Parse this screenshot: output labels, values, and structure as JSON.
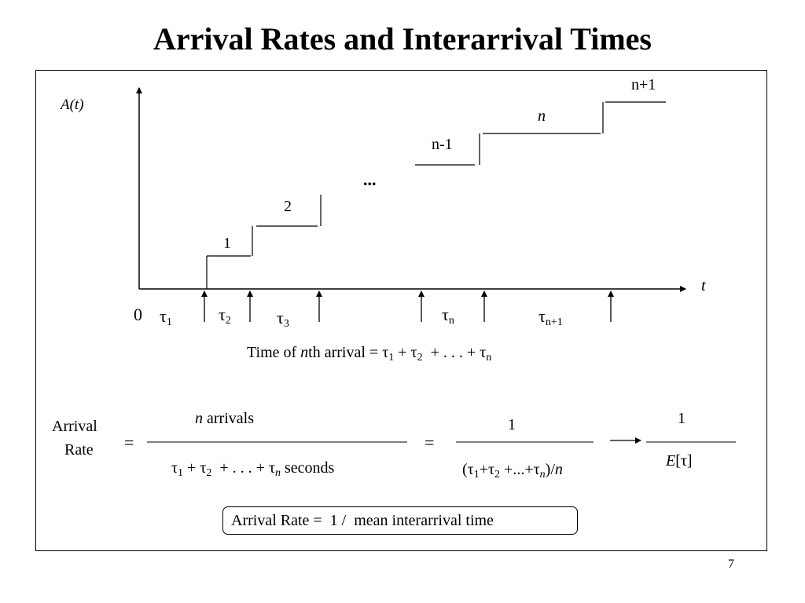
{
  "slide": {
    "title": "Arrival Rates and Interarrival Times",
    "page_number": "7"
  },
  "diagram": {
    "y_axis_label": "A(t)",
    "x_axis_label": "t",
    "origin_label": "0",
    "ellipsis": "...",
    "step_labels": [
      "1",
      "2",
      "n-1",
      "n",
      "n+1"
    ],
    "interval_labels": [
      {
        "base": "τ",
        "sub": "1"
      },
      {
        "base": "τ",
        "sub": "2"
      },
      {
        "base": "τ",
        "sub": "3"
      },
      {
        "base": "τ",
        "sub": "n"
      },
      {
        "base": "τ",
        "sub": "n+1"
      }
    ],
    "nth_arrival_formula": {
      "lhs_prefix": "Time of ",
      "lhs_italic": "n",
      "lhs_suffix": "th arrival = ",
      "term1": "τ",
      "sub1": "1",
      "plus1": " + ",
      "term2": "τ",
      "sub2": "2",
      "middle": "  + . . . + ",
      "termn": "τ",
      "subn": "n"
    }
  },
  "rate": {
    "label_line1": "Arrival",
    "label_line2": "Rate",
    "equals": "=",
    "frac1_num_italic": "n",
    "frac1_num_text": " arrivals",
    "frac1_den": {
      "t1": "τ",
      "s1": "1",
      "plus": " + ",
      "t2": "τ",
      "s2": "2",
      "dots": "  + . . . + ",
      "tn": "τ",
      "sn": "n",
      "tail": " seconds"
    },
    "frac2_num": "1",
    "frac2_den": {
      "open": "(",
      "t1": "τ",
      "s1": "1",
      "plus": "+",
      "t2": "τ",
      "s2": "2",
      "dots": " +...+",
      "tn": "τ",
      "sn": "n",
      "close": ")/",
      "n": "n"
    },
    "frac3_num": "1",
    "frac3_den_italic": "E",
    "frac3_den_rest": "[τ]",
    "boxed_text": "Arrival Rate =  1 /  mean interarrival time"
  }
}
